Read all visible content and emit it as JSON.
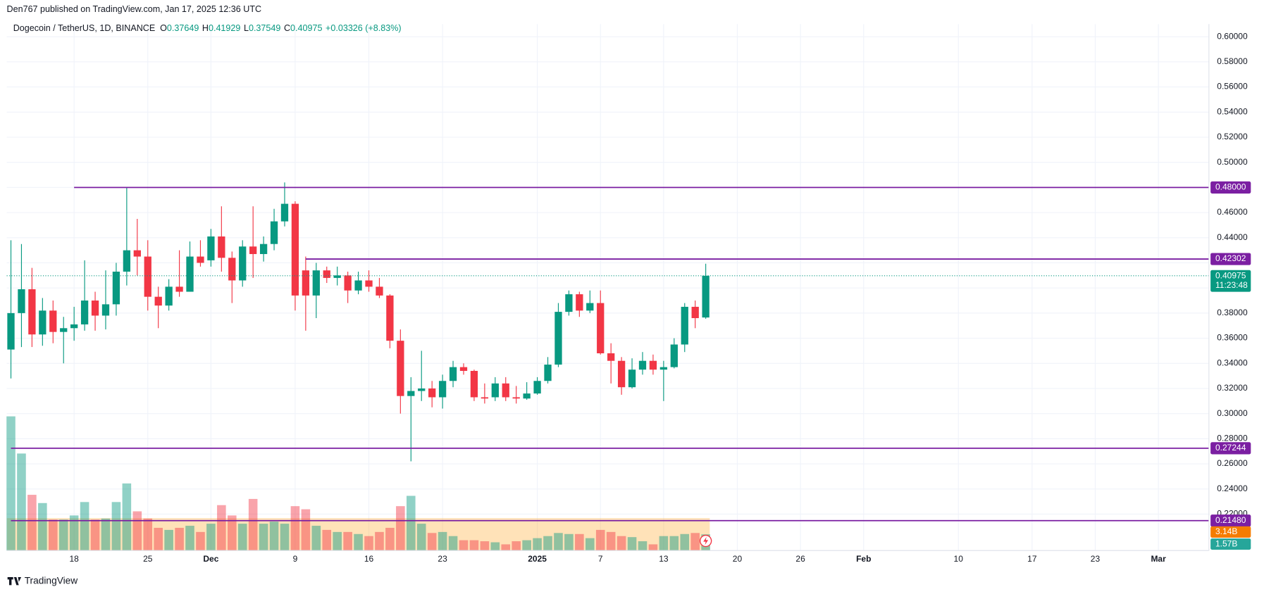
{
  "header": {
    "publisher": "Den767 published on TradingView.com, Jan 17, 2025 12:36 UTC",
    "brand": "TradingView"
  },
  "chart_data": {
    "type": "candlestick",
    "symbol": "Dogecoin / TetherUS, 1D, BINANCE",
    "ohlc_letters": [
      "O",
      "H",
      "L",
      "C"
    ],
    "change": "+0.03326 (+8.83%)",
    "open": [
      0.351,
      0.38,
      0.399,
      0.363,
      0.382,
      0.365,
      0.368,
      0.371,
      0.39,
      0.378,
      0.387,
      0.413,
      0.43,
      0.425,
      0.393,
      0.386,
      0.401,
      0.397,
      0.425,
      0.422,
      0.441,
      0.424,
      0.406,
      0.433,
      0.427,
      0.435,
      0.453,
      0.467,
      0.414,
      0.394,
      0.414,
      0.408,
      0.41,
      0.398,
      0.406,
      0.401,
      0.394,
      0.358,
      0.314,
      0.318,
      0.32,
      0.313,
      0.326,
      0.337,
      0.334,
      0.313,
      0.313,
      0.324,
      0.313,
      0.312,
      0.316,
      0.326,
      0.339,
      0.381,
      0.395,
      0.382,
      0.388,
      0.348,
      0.342,
      0.321,
      0.335,
      0.342,
      0.335,
      0.337,
      0.355,
      0.385,
      0.37649
    ],
    "high": [
      0.438,
      0.435,
      0.416,
      0.392,
      0.39,
      0.377,
      0.385,
      0.422,
      0.397,
      0.414,
      0.42,
      0.48,
      0.455,
      0.438,
      0.401,
      0.407,
      0.43,
      0.437,
      0.438,
      0.447,
      0.465,
      0.429,
      0.438,
      0.465,
      0.441,
      0.463,
      0.484,
      0.469,
      0.425,
      0.42,
      0.417,
      0.417,
      0.413,
      0.413,
      0.414,
      0.408,
      0.395,
      0.367,
      0.329,
      0.35,
      0.326,
      0.331,
      0.342,
      0.34,
      0.335,
      0.324,
      0.329,
      0.329,
      0.322,
      0.325,
      0.329,
      0.345,
      0.388,
      0.398,
      0.397,
      0.398,
      0.398,
      0.356,
      0.345,
      0.344,
      0.349,
      0.347,
      0.342,
      0.36,
      0.388,
      0.39,
      0.41929
    ],
    "low": [
      0.328,
      0.353,
      0.353,
      0.354,
      0.356,
      0.34,
      0.358,
      0.366,
      0.366,
      0.367,
      0.378,
      0.402,
      0.41,
      0.382,
      0.368,
      0.382,
      0.393,
      0.397,
      0.417,
      0.417,
      0.413,
      0.388,
      0.401,
      0.408,
      0.421,
      0.43,
      0.449,
      0.382,
      0.366,
      0.376,
      0.404,
      0.402,
      0.388,
      0.395,
      0.397,
      0.392,
      0.352,
      0.3,
      0.262,
      0.31,
      0.305,
      0.304,
      0.321,
      0.331,
      0.31,
      0.308,
      0.31,
      0.31,
      0.308,
      0.311,
      0.315,
      0.324,
      0.337,
      0.378,
      0.377,
      0.38,
      0.347,
      0.324,
      0.315,
      0.32,
      0.331,
      0.331,
      0.31,
      0.336,
      0.349,
      0.368,
      0.37549
    ],
    "close": [
      0.38,
      0.399,
      0.363,
      0.382,
      0.365,
      0.368,
      0.371,
      0.39,
      0.378,
      0.387,
      0.413,
      0.43,
      0.425,
      0.393,
      0.386,
      0.401,
      0.397,
      0.425,
      0.42,
      0.441,
      0.424,
      0.406,
      0.433,
      0.427,
      0.435,
      0.453,
      0.467,
      0.394,
      0.394,
      0.414,
      0.408,
      0.41,
      0.398,
      0.406,
      0.401,
      0.394,
      0.358,
      0.314,
      0.318,
      0.32,
      0.313,
      0.326,
      0.337,
      0.334,
      0.313,
      0.312,
      0.324,
      0.313,
      0.312,
      0.316,
      0.326,
      0.339,
      0.381,
      0.395,
      0.382,
      0.388,
      0.348,
      0.342,
      0.321,
      0.335,
      0.342,
      0.335,
      0.337,
      0.355,
      0.385,
      0.376,
      0.40975
    ],
    "volume": {
      "values": [
        13.0,
        9.4,
        5.4,
        4.6,
        3.0,
        3.0,
        3.4,
        4.7,
        3.0,
        3.1,
        4.7,
        6.5,
        3.8,
        3.1,
        2.2,
        2.0,
        2.2,
        2.4,
        1.8,
        2.6,
        4.4,
        3.4,
        2.6,
        5.0,
        2.6,
        2.8,
        2.6,
        4.3,
        4.0,
        2.4,
        2.0,
        1.8,
        1.8,
        1.6,
        1.4,
        1.8,
        2.2,
        4.3,
        5.3,
        2.6,
        1.7,
        1.8,
        1.4,
        1.0,
        1.0,
        0.9,
        0.8,
        0.6,
        0.9,
        1.0,
        1.2,
        1.4,
        1.7,
        1.6,
        1.6,
        1.2,
        2.0,
        1.8,
        1.4,
        1.3,
        0.9,
        0.6,
        1.4,
        1.4,
        1.6,
        1.7,
        1.57
      ],
      "value_labels": [
        null,
        null,
        null,
        null,
        null,
        null,
        null,
        null,
        null,
        null,
        null,
        null,
        null,
        null,
        null,
        null,
        null,
        null,
        null,
        null,
        null,
        null,
        null,
        null,
        null,
        null,
        null,
        null,
        null,
        null,
        null,
        null,
        null,
        null,
        null,
        null,
        null,
        null,
        null,
        null,
        null,
        null,
        null,
        null,
        null,
        null,
        null,
        null,
        null,
        null,
        null,
        null,
        null,
        null,
        null,
        null,
        null,
        null,
        null,
        null,
        null,
        null,
        null,
        null,
        null,
        null,
        "1.57B"
      ],
      "ylim": [
        0,
        51
      ],
      "ma": {
        "value": 3.14,
        "label": "3.14B"
      }
    },
    "countdown": "11:23:48",
    "levels": [
      {
        "value": 0.48,
        "label": "0.48000"
      },
      {
        "value": 0.42302,
        "label": "0.42302"
      },
      {
        "value": 0.27244,
        "label": "0.27244"
      },
      {
        "value": 0.2148,
        "label": "0.21480"
      }
    ],
    "ylim": [
      0.191,
      0.61
    ],
    "yticks": [
      {
        "value": 0.22,
        "label": "0.22000"
      },
      {
        "value": 0.24,
        "label": "0.24000"
      },
      {
        "value": 0.26,
        "label": "0.26000"
      },
      {
        "value": 0.28,
        "label": "0.28000"
      },
      {
        "value": 0.3,
        "label": "0.30000"
      },
      {
        "value": 0.32,
        "label": "0.32000"
      },
      {
        "value": 0.34,
        "label": "0.34000"
      },
      {
        "value": 0.36,
        "label": "0.36000"
      },
      {
        "value": 0.38,
        "label": "0.38000"
      },
      {
        "value": 0.4,
        "label": "0.40000"
      },
      {
        "value": 0.42,
        "label": "0.42000"
      },
      {
        "value": 0.44,
        "label": "0.44000"
      },
      {
        "value": 0.46,
        "label": "0.46000"
      },
      {
        "value": 0.48,
        "label": "0.48000"
      },
      {
        "value": 0.5,
        "label": "0.50000"
      },
      {
        "value": 0.52,
        "label": "0.52000"
      },
      {
        "value": 0.54,
        "label": "0.54000"
      },
      {
        "value": 0.56,
        "label": "0.56000"
      },
      {
        "value": 0.58,
        "label": "0.58000"
      },
      {
        "value": 0.6,
        "label": "0.60000"
      }
    ],
    "xlim": [
      -0.4,
      113.8
    ],
    "xticks": [
      {
        "value": 6,
        "label": "18"
      },
      {
        "value": 13,
        "label": "25"
      },
      {
        "value": 19,
        "label": "Dec"
      },
      {
        "value": 27,
        "label": "9"
      },
      {
        "value": 34,
        "label": "16"
      },
      {
        "value": 41,
        "label": "23"
      },
      {
        "value": 50,
        "label": "2025"
      },
      {
        "value": 56,
        "label": "7"
      },
      {
        "value": 62,
        "label": "13"
      },
      {
        "value": 69,
        "label": "20"
      },
      {
        "value": 75,
        "label": "26"
      },
      {
        "value": 81,
        "label": "Feb"
      },
      {
        "value": 90,
        "label": "10"
      },
      {
        "value": 97,
        "label": "17"
      },
      {
        "value": 103,
        "label": "23"
      },
      {
        "value": 109,
        "label": "Mar"
      }
    ],
    "up_color": "#089981",
    "down_color": "#f23645",
    "level_color": "#7b1fa2",
    "grid": true
  }
}
